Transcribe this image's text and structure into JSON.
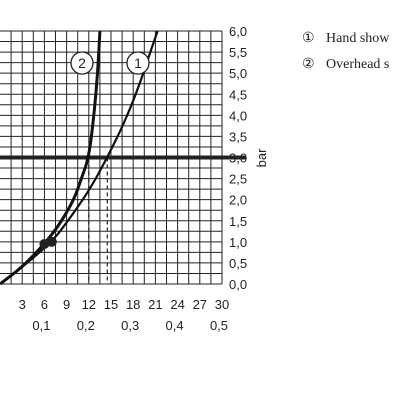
{
  "chart_data": {
    "type": "line",
    "ylabel": "bar",
    "ylim": [
      0,
      6.0
    ],
    "xlim": [
      0,
      30
    ],
    "y_ticks": [
      "0,0",
      "0,5",
      "1,0",
      "1,5",
      "2,0",
      "2,5",
      "3,0",
      "3,5",
      "4,0",
      "4,5",
      "5,0",
      "5,5",
      "6,0"
    ],
    "x_ticks_primary": [
      "3",
      "6",
      "9",
      "12",
      "15",
      "18",
      "21",
      "24",
      "27",
      "30"
    ],
    "x_ticks_secondary": [
      "0,1",
      "0,2",
      "0,3",
      "0,4",
      "0,5"
    ],
    "grid": true,
    "reference_line": {
      "y": 3.0
    },
    "series": [
      {
        "marker": "1",
        "name": "Hand show",
        "x": [
          0,
          3,
          7,
          9,
          12,
          14.5,
          17,
          19,
          20.5,
          21.3
        ],
        "y": [
          0,
          0.4,
          1.0,
          1.45,
          2.2,
          3.0,
          3.9,
          4.8,
          5.6,
          6.0
        ]
      },
      {
        "marker": "2",
        "name": "Overhead s",
        "x": [
          0,
          3,
          6,
          8,
          10,
          11,
          12,
          12.7,
          13.2,
          13.5
        ],
        "y": [
          0,
          0.4,
          0.95,
          1.4,
          2.0,
          2.5,
          3.0,
          4.0,
          5.0,
          6.0
        ]
      }
    ],
    "points": [
      {
        "x": 6,
        "y": 0.95
      },
      {
        "x": 7,
        "y": 1.0
      }
    ],
    "drop_lines_x": [
      12,
      14.5
    ],
    "legend": {
      "placement": "top-right",
      "items": [
        {
          "marker": "①",
          "label": "Hand show"
        },
        {
          "marker": "②",
          "label": "Overhead s"
        }
      ]
    }
  }
}
